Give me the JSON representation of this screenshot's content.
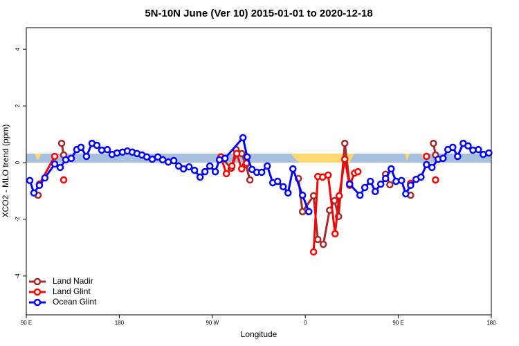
{
  "chart_data": {
    "type": "line",
    "title": "5N-10N June (Ver 10)   2015-01-01 to 2020-12-18",
    "xlabel": "Longitude",
    "ylabel": "XCO2 - MLO trend (ppm)",
    "xlim": [
      90,
      540
    ],
    "ylim": [
      -5.37,
      4.76
    ],
    "xticks": [
      {
        "value": 90,
        "label": "90 E"
      },
      {
        "value": 180,
        "label": "180"
      },
      {
        "value": 270,
        "label": "90 W"
      },
      {
        "value": 360,
        "label": "0"
      },
      {
        "value": 450,
        "label": "90 E"
      },
      {
        "value": 540,
        "label": "180"
      }
    ],
    "yticks": [
      -4,
      -2,
      0,
      2,
      4
    ],
    "legend": "lower left",
    "series": [
      {
        "name": "Land Nadir",
        "color": "#a52a2a",
        "x": [
          101.4,
          null,
          124.2,
          126.2,
          null,
          278.3,
          288.3,
          293,
          298.4,
          302.4,
          306.4,
          null,
          353.3,
          357.3,
          368,
          372.1,
          377.4,
          383.5,
          388.2,
          392.2,
          398.2,
          402.9,
          null,
          437.7,
          441.8,
          null,
          461.9,
          null,
          484,
          486
        ],
        "values": [
          -1.15,
          null,
          0.68,
          0.27,
          null,
          0.2,
          -0.2,
          0.46,
          0.32,
          -0.07,
          -0.61,
          null,
          -0.56,
          -1.73,
          -1.17,
          -2.71,
          -2.88,
          -1.68,
          -1.34,
          -1.9,
          0.68,
          -0.73,
          null,
          -0.41,
          -0.78,
          null,
          -1.15,
          null,
          0.68,
          0.27
        ]
      },
      {
        "name": "Land Glint",
        "color": "#ff0000",
        "x": [
          102.7,
          117.5,
          null,
          126.2,
          null,
          278.3,
          283.6,
          289,
          293.7,
          298.4,
          303.1,
          null,
          368,
          372.1,
          376.8,
          382.1,
          388.8,
          392.8,
          398.2,
          402.9,
          407.6,
          410.9,
          null,
          461.9,
          null,
          477.3,
          null,
          486
        ],
        "values": [
          -0.76,
          0.22,
          null,
          -0.61,
          null,
          0.2,
          -0.39,
          -0.12,
          0.32,
          -0.22,
          -0.02,
          null,
          -3.15,
          -0.49,
          -0.51,
          -0.44,
          -2.51,
          -1.17,
          0.12,
          -0.8,
          -0.37,
          -0.32,
          null,
          -0.73,
          null,
          0.22,
          null,
          -0.61
        ]
      },
      {
        "name": "Ocean Glint",
        "color": "#0000ff",
        "x": [
          93.4,
          97.4,
          102.7,
          108,
          117.5,
          122.8,
          128.2,
          133.5,
          138.9,
          142.9,
          148.2,
          153.6,
          158.3,
          163,
          168.4,
          173,
          177.8,
          183.1,
          187.8,
          192.5,
          197.2,
          201.9,
          206.6,
          211.9,
          217.3,
          222,
          227.4,
          232.7,
          237.4,
          242.1,
          247.5,
          252.8,
          258.2,
          262.9,
          267.6,
          272.9,
          276.9,
          282.3,
          299.7,
          303.7,
          308.4,
          313.1,
          317.8,
          323.2,
          328.5,
          333.2,
          338.6,
          343.3,
          348,
          357.3,
          363.4,
          null,
          402.9,
          412.9,
          417.6,
          423,
          427.7,
          433,
          437.7,
          443.1,
          447.8,
          453.1,
          457.2,
          461.9,
          467.2,
          471.9,
          477.3,
          482.6,
          488.6,
          493.3,
          498,
          502.7,
          507.4,
          512.8,
          517.5,
          522.2,
          527.5,
          532.2,
          537.6
        ],
        "values": [
          -0.63,
          -1.07,
          -0.8,
          -0.54,
          -0.05,
          -0.17,
          0.1,
          0.15,
          0.46,
          0.54,
          0.22,
          0.68,
          0.61,
          0.44,
          0.46,
          0.29,
          0.34,
          0.37,
          0.41,
          0.37,
          0.32,
          0.27,
          0.2,
          0.12,
          0.2,
          0.1,
          0.02,
          0.07,
          -0.12,
          -0.22,
          -0.15,
          -0.27,
          -0.51,
          -0.32,
          -0.12,
          -0.32,
          0.1,
          0.15,
          0.88,
          0.2,
          -0.24,
          -0.34,
          -0.34,
          -0.12,
          -0.71,
          -0.66,
          -0.85,
          -1.07,
          -0.22,
          -1.15,
          -1.73,
          null,
          -0.76,
          -1.15,
          -0.88,
          -0.66,
          -1.02,
          -0.76,
          -0.56,
          -0.22,
          -0.66,
          -0.63,
          -1.1,
          -0.8,
          -0.59,
          -0.51,
          -0.07,
          -0.17,
          0.12,
          0.15,
          0.46,
          0.54,
          0.22,
          0.68,
          0.59,
          0.44,
          0.46,
          0.29,
          0.34
        ]
      }
    ]
  }
}
